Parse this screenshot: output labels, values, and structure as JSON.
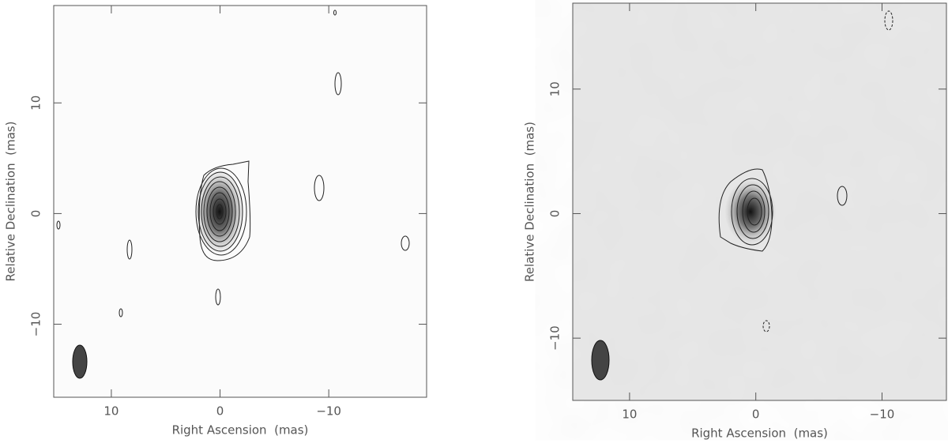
{
  "chart_data": [
    {
      "type": "contour",
      "xlabel": "Right Ascension  (mas)",
      "ylabel": "Relative Declination  (mas)",
      "xlim": [
        15.3,
        -19
      ],
      "ylim": [
        -16.6,
        18.8
      ],
      "xticks": [
        10,
        0,
        {
          "value": -10,
          "label": "−10"
        }
      ],
      "yticks": [
        {
          "value": -10,
          "label": "−10"
        },
        0,
        10
      ]
    },
    {
      "type": "contour",
      "xlabel": "Right Ascension  (mas)",
      "ylabel": "Relative Declination  (mas)",
      "xlim": [
        14.5,
        -15.1
      ],
      "ylim": [
        -15,
        16.9
      ],
      "xticks": [
        10,
        0,
        {
          "value": -10,
          "label": "−10"
        }
      ],
      "yticks": [
        {
          "value": -10,
          "label": "−10"
        },
        0,
        10
      ]
    }
  ]
}
